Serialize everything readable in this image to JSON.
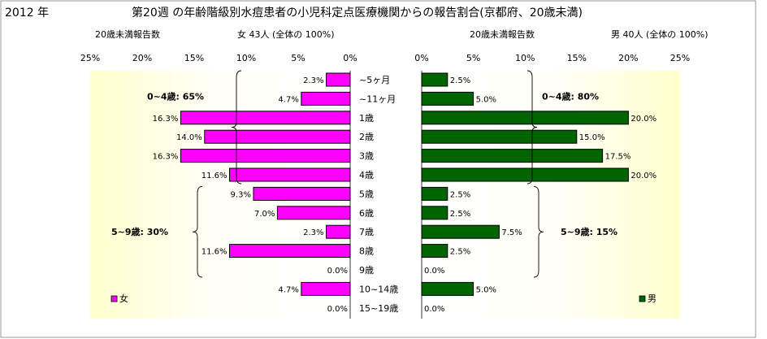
{
  "header": {
    "year": "2012 年",
    "title": "第20週 の年齢階級別水痘患者の小児科定点医療機関からの報告割合(京都府、20歳未満)"
  },
  "chart_data": [
    {
      "type": "bar",
      "orientation": "horizontal",
      "direction": "reversed",
      "panel": "female",
      "subtitle_left": "20歳未満報告数",
      "subtitle_right": "女  43人 (全体の  100%)",
      "xlim": [
        0,
        25
      ],
      "xticks": [
        "25%",
        "20%",
        "15%",
        "10%",
        "5%",
        "0%"
      ],
      "series": [
        {
          "name": "女",
          "color": "#ff00ff",
          "values": [
            2.3,
            4.7,
            16.3,
            14.0,
            16.3,
            11.6,
            9.3,
            7.0,
            2.3,
            11.6,
            0.0,
            4.7,
            0.0
          ],
          "labels": [
            "2.3%",
            "4.7%",
            "16.3%",
            "14.0%",
            "16.3%",
            "11.6%",
            "9.3%",
            "7.0%",
            "2.3%",
            "11.6%",
            "0.0%",
            "4.7%",
            "0.0%"
          ]
        }
      ],
      "annotations": [
        {
          "text": "0~4歳: 65%",
          "span": [
            0,
            5
          ]
        },
        {
          "text": "5~9歳: 30%",
          "span": [
            6,
            10
          ]
        }
      ],
      "legend": "bottom-left"
    },
    {
      "type": "bar",
      "orientation": "horizontal",
      "panel": "male",
      "subtitle_left": "20歳未満報告数",
      "subtitle_right": "男  40人 (全体の  100%)",
      "xlim": [
        0,
        25
      ],
      "xticks": [
        "0%",
        "5%",
        "10%",
        "15%",
        "20%",
        "25%"
      ],
      "series": [
        {
          "name": "男",
          "color": "#006400",
          "values": [
            2.5,
            5.0,
            20.0,
            15.0,
            17.5,
            20.0,
            2.5,
            2.5,
            7.5,
            2.5,
            0.0,
            5.0,
            0.0
          ],
          "labels": [
            "2.5%",
            "5.0%",
            "20.0%",
            "15.0%",
            "17.5%",
            "20.0%",
            "2.5%",
            "2.5%",
            "7.5%",
            "2.5%",
            "0.0%",
            "5.0%",
            "0.0%"
          ]
        }
      ],
      "annotations": [
        {
          "text": "0~4歳: 80%",
          "span": [
            0,
            5
          ]
        },
        {
          "text": "5~9歳: 15%",
          "span": [
            6,
            10
          ]
        }
      ],
      "legend": "bottom-right"
    }
  ],
  "categories": [
    "~5ヶ月",
    "~11ヶ月",
    "1歳",
    "2歳",
    "3歳",
    "4歳",
    "5歳",
    "6歳",
    "7歳",
    "8歳",
    "9歳",
    "10~14歳",
    "15~19歳"
  ]
}
